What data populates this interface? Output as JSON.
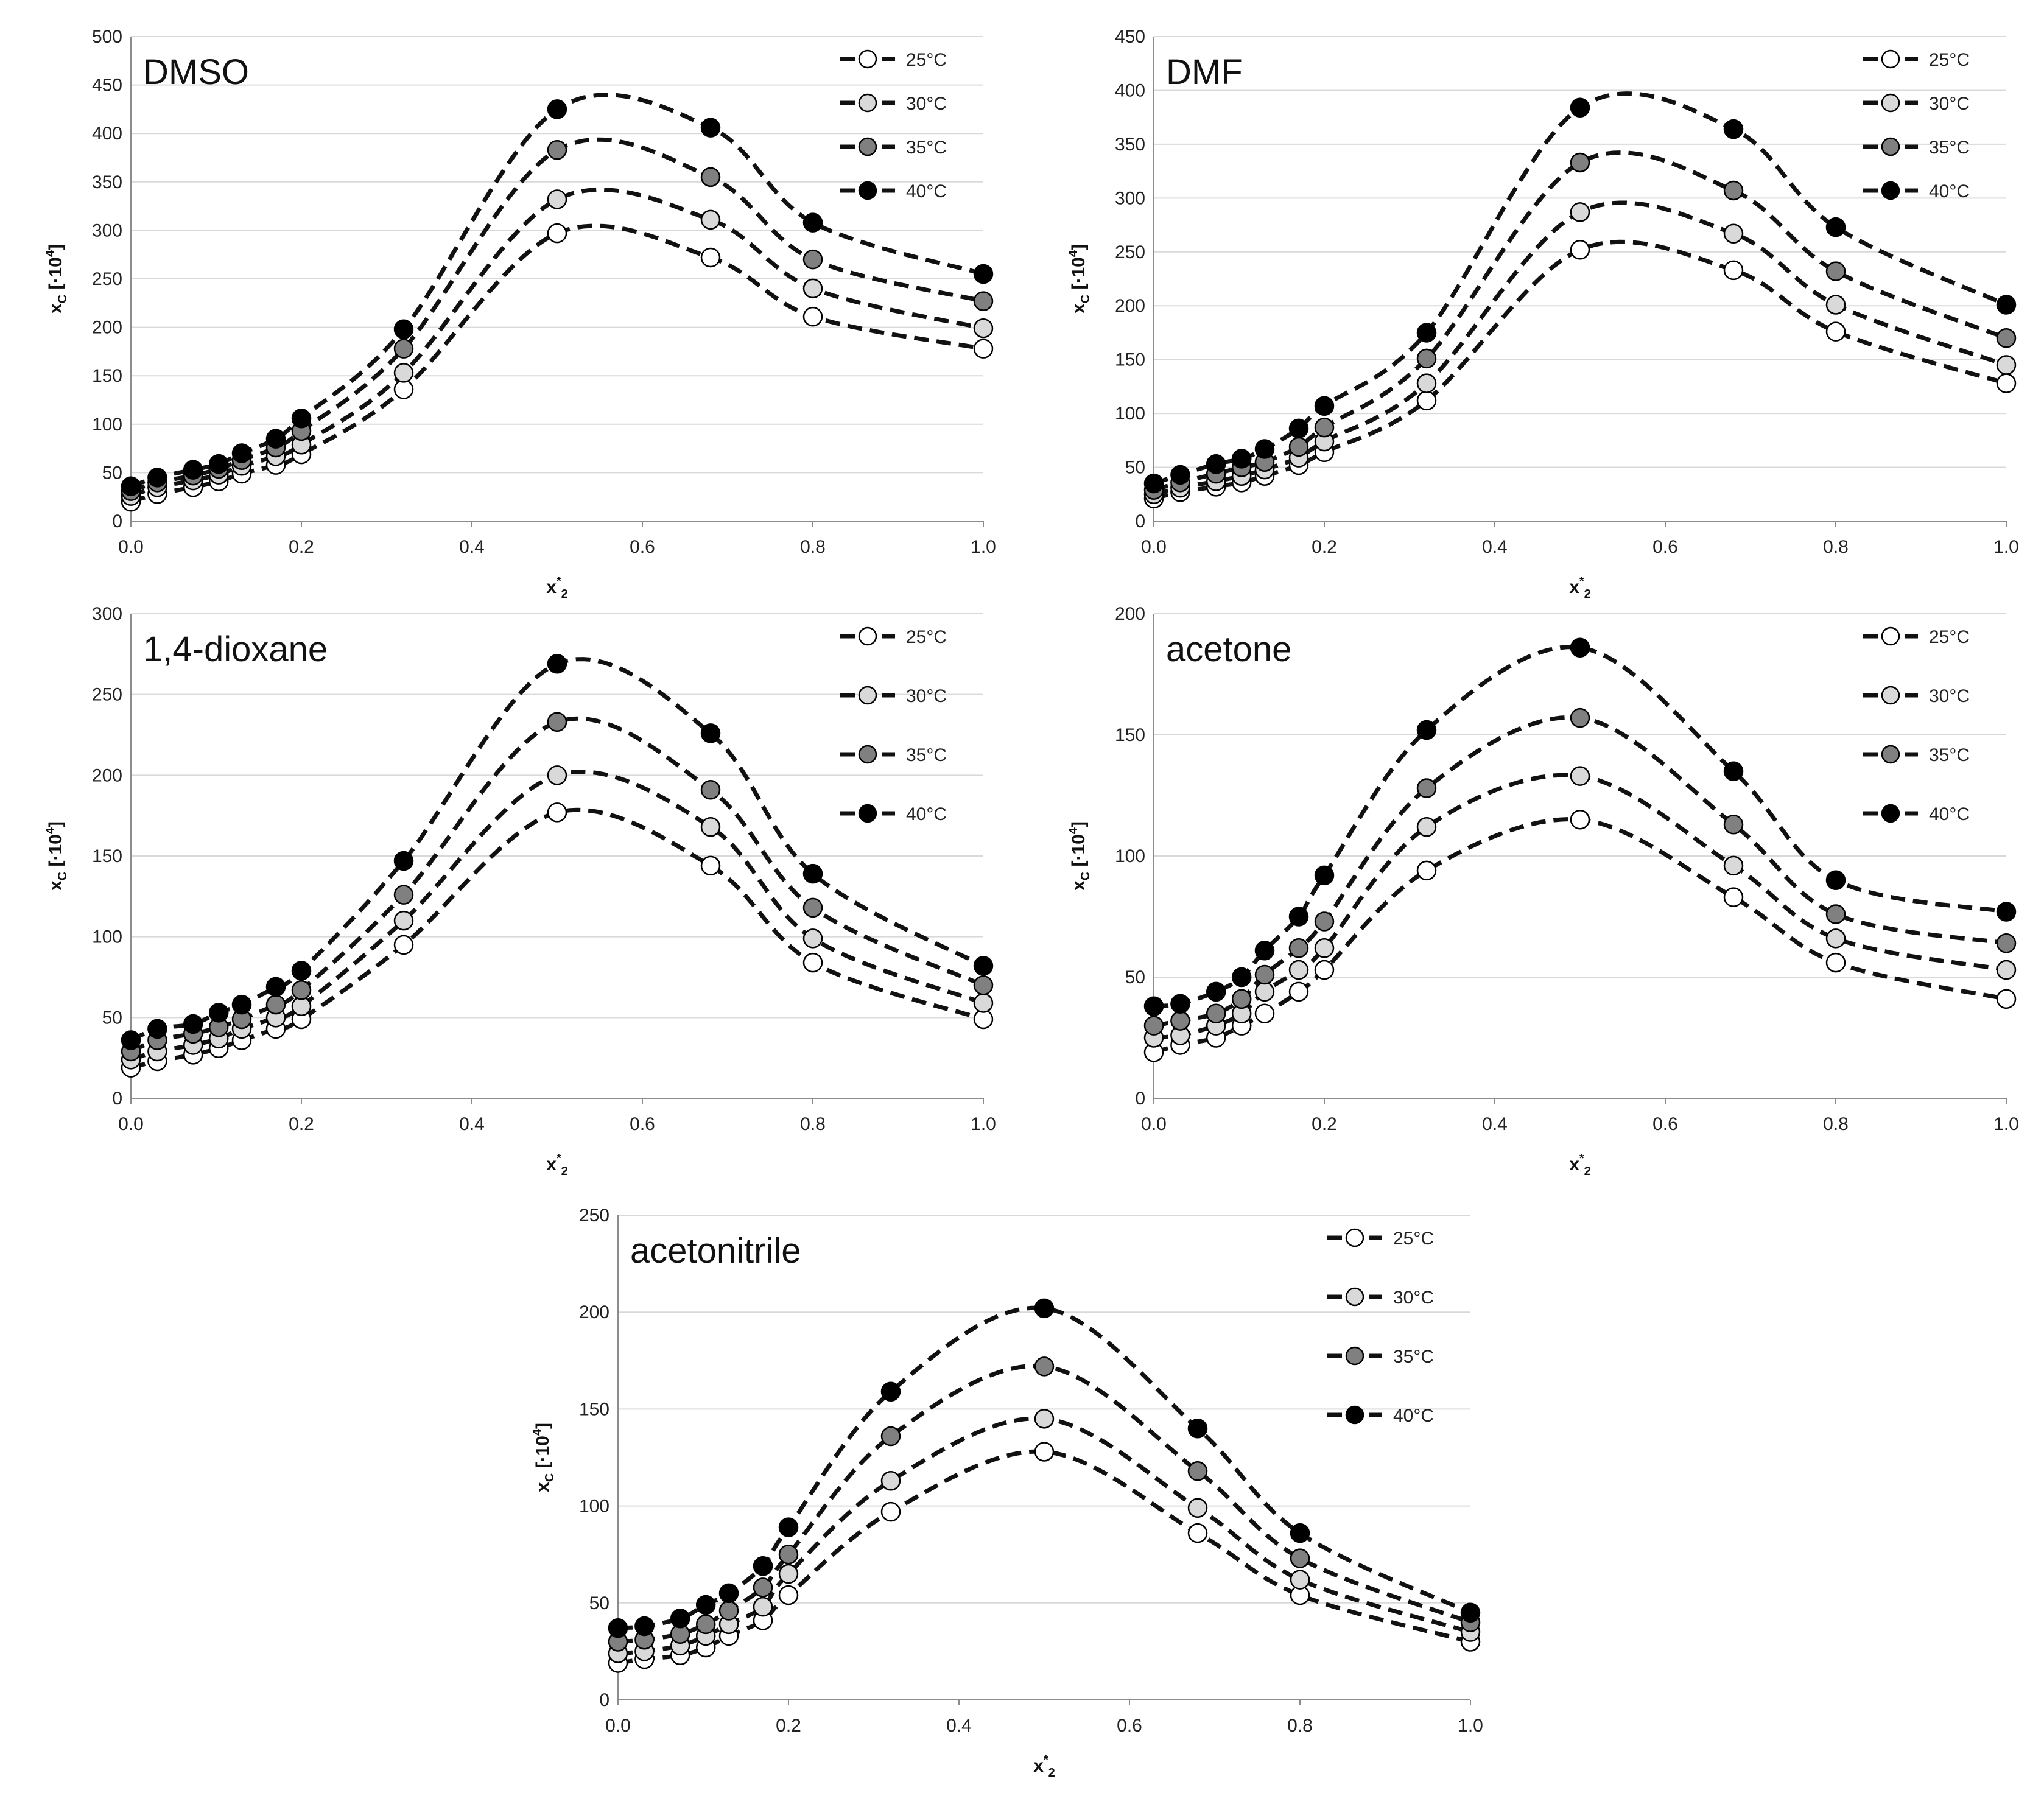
{
  "figure": {
    "ylabel_main": "x",
    "ylabel_sub": "C",
    "ylabel_unit": "[·10",
    "ylabel_exp": "4",
    "ylabel_close": "]",
    "xlabel_main": "x",
    "xlabel_sup": "*",
    "xlabel_sub": "2",
    "legend": [
      "25°C",
      "30°C",
      "35°C",
      "40°C"
    ],
    "series_colors": [
      "#ffffff",
      "#d9d9d9",
      "#808080",
      "#000000"
    ]
  },
  "chart_data": [
    {
      "type": "scatter",
      "title": "DMSO",
      "xlim": [
        0,
        1
      ],
      "ylim": [
        0,
        500
      ],
      "xticks": [
        "0.0",
        "0.2",
        "0.4",
        "0.6",
        "0.8",
        "1.0"
      ],
      "yticks": [
        "0",
        "50",
        "100",
        "150",
        "200",
        "250",
        "300",
        "350",
        "400",
        "450",
        "500"
      ],
      "x": [
        0.0,
        0.031,
        0.073,
        0.103,
        0.13,
        0.17,
        0.2,
        0.32,
        0.5,
        0.68,
        0.8,
        1.0
      ],
      "series": [
        {
          "name": "25°C",
          "values": [
            20,
            28,
            35,
            41,
            49,
            58,
            69,
            136,
            297,
            272,
            211,
            178
          ]
        },
        {
          "name": "30°C",
          "values": [
            26,
            35,
            42,
            48,
            57,
            67,
            79,
            153,
            332,
            311,
            240,
            199
          ]
        },
        {
          "name": "35°C",
          "values": [
            31,
            40,
            47,
            54,
            63,
            76,
            93,
            178,
            383,
            355,
            270,
            227
          ]
        },
        {
          "name": "40°C",
          "values": [
            36,
            45,
            53,
            59,
            70,
            85,
            106,
            198,
            425,
            406,
            308,
            255
          ]
        }
      ],
      "grid": true,
      "legend_position": "top-right"
    },
    {
      "type": "scatter",
      "title": "DMF",
      "xlim": [
        0,
        1
      ],
      "ylim": [
        0,
        450
      ],
      "xticks": [
        "0.0",
        "0.2",
        "0.4",
        "0.6",
        "0.8",
        "1.0"
      ],
      "yticks": [
        "0",
        "50",
        "100",
        "150",
        "200",
        "250",
        "300",
        "350",
        "400",
        "450"
      ],
      "x": [
        0.0,
        0.031,
        0.073,
        0.103,
        0.13,
        0.17,
        0.2,
        0.32,
        0.5,
        0.68,
        0.8,
        1.0
      ],
      "series": [
        {
          "name": "25°C",
          "values": [
            21,
            27,
            32,
            36,
            42,
            52,
            64,
            112,
            252,
            233,
            176,
            128
          ]
        },
        {
          "name": "30°C",
          "values": [
            25,
            31,
            37,
            42,
            48,
            59,
            74,
            128,
            287,
            267,
            201,
            145
          ]
        },
        {
          "name": "35°C",
          "values": [
            29,
            36,
            44,
            50,
            55,
            69,
            87,
            151,
            333,
            307,
            232,
            170
          ]
        },
        {
          "name": "40°C",
          "values": [
            35,
            43,
            53,
            58,
            67,
            86,
            107,
            175,
            384,
            364,
            273,
            201
          ]
        }
      ],
      "grid": true,
      "legend_position": "top-right"
    },
    {
      "type": "scatter",
      "title": "1,4-dioxane",
      "xlim": [
        0,
        1
      ],
      "ylim": [
        0,
        300
      ],
      "xticks": [
        "0.0",
        "0.2",
        "0.4",
        "0.6",
        "0.8",
        "1.0"
      ],
      "yticks": [
        "0",
        "50",
        "100",
        "150",
        "200",
        "250",
        "300"
      ],
      "x": [
        0.0,
        0.031,
        0.073,
        0.103,
        0.13,
        0.17,
        0.2,
        0.32,
        0.5,
        0.68,
        0.8,
        1.0
      ],
      "series": [
        {
          "name": "25°C",
          "values": [
            19,
            23,
            27,
            31,
            36,
            43,
            49,
            95,
            177,
            144,
            84,
            49
          ]
        },
        {
          "name": "30°C",
          "values": [
            24,
            29,
            33,
            37,
            43,
            50,
            57,
            110,
            200,
            168,
            99,
            59
          ]
        },
        {
          "name": "35°C",
          "values": [
            29,
            36,
            40,
            44,
            49,
            58,
            67,
            126,
            233,
            191,
            118,
            70
          ]
        },
        {
          "name": "40°C",
          "values": [
            36,
            43,
            46,
            53,
            58,
            69,
            79,
            147,
            269,
            226,
            139,
            82
          ]
        }
      ],
      "grid": true,
      "legend_position": "top-right"
    },
    {
      "type": "scatter",
      "title": "acetone",
      "xlim": [
        0,
        1
      ],
      "ylim": [
        0,
        200
      ],
      "xticks": [
        "0.0",
        "0.2",
        "0.4",
        "0.6",
        "0.8",
        "1.0"
      ],
      "yticks": [
        "0",
        "50",
        "100",
        "150",
        "200"
      ],
      "x": [
        0.0,
        0.031,
        0.073,
        0.103,
        0.13,
        0.17,
        0.2,
        0.32,
        0.5,
        0.68,
        0.8,
        1.0
      ],
      "series": [
        {
          "name": "25°C",
          "values": [
            19,
            22,
            25,
            30,
            35,
            44,
            53,
            94,
            115,
            83,
            56,
            41
          ]
        },
        {
          "name": "30°C",
          "values": [
            25,
            26,
            30,
            35,
            44,
            53,
            62,
            112,
            133,
            96,
            66,
            53
          ]
        },
        {
          "name": "35°C",
          "values": [
            30,
            32,
            35,
            41,
            51,
            62,
            73,
            128,
            157,
            113,
            76,
            64
          ]
        },
        {
          "name": "40°C",
          "values": [
            38,
            39,
            44,
            50,
            61,
            75,
            92,
            152,
            186,
            135,
            90,
            77
          ]
        }
      ],
      "grid": true,
      "legend_position": "top-right"
    },
    {
      "type": "scatter",
      "title": "acetonitrile",
      "xlim": [
        0,
        1
      ],
      "ylim": [
        0,
        250
      ],
      "xticks": [
        "0.0",
        "0.2",
        "0.4",
        "0.6",
        "0.8",
        "1.0"
      ],
      "yticks": [
        "0",
        "50",
        "100",
        "150",
        "200",
        "250"
      ],
      "x": [
        0.0,
        0.031,
        0.073,
        0.103,
        0.13,
        0.17,
        0.2,
        0.32,
        0.5,
        0.68,
        0.8,
        1.0
      ],
      "series": [
        {
          "name": "25°C",
          "values": [
            19,
            21,
            23,
            27,
            33,
            41,
            54,
            97,
            128,
            86,
            54,
            30
          ]
        },
        {
          "name": "30°C",
          "values": [
            24,
            25,
            28,
            33,
            39,
            48,
            65,
            113,
            145,
            99,
            62,
            35
          ]
        },
        {
          "name": "35°C",
          "values": [
            30,
            31,
            34,
            39,
            46,
            58,
            75,
            136,
            172,
            118,
            73,
            40
          ]
        },
        {
          "name": "40°C",
          "values": [
            37,
            38,
            42,
            49,
            55,
            69,
            89,
            159,
            202,
            140,
            86,
            45
          ]
        }
      ],
      "grid": true,
      "legend_position": "top-right"
    }
  ]
}
